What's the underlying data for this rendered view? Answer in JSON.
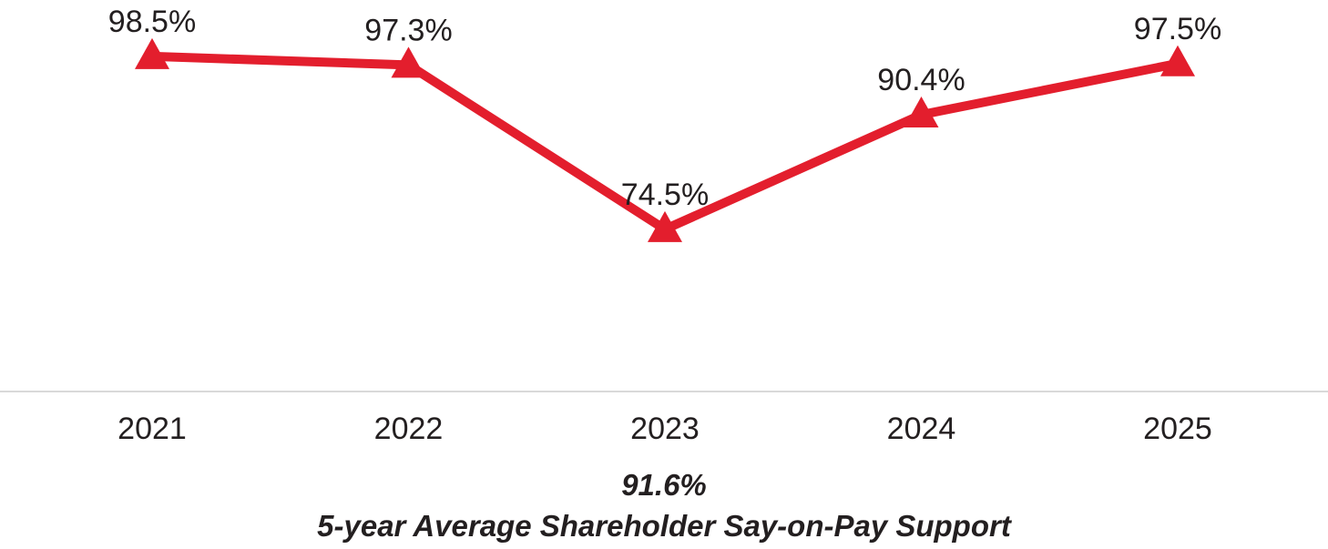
{
  "colors": {
    "line": "#e31e2d",
    "text": "#231f20",
    "axis": "#d9d9d9"
  },
  "chart_data": {
    "type": "line",
    "categories": [
      "2021",
      "2022",
      "2023",
      "2024",
      "2025"
    ],
    "series": [
      {
        "name": "Shareholder Say-on-Pay Support",
        "values": [
          98.5,
          97.3,
          74.5,
          90.4,
          97.5
        ],
        "labels": [
          "98.5%",
          "97.3%",
          "74.5%",
          "90.4%",
          "97.5%"
        ],
        "marker": "triangle"
      }
    ],
    "ylim": [
      52,
      100
    ],
    "xlabel": "",
    "ylabel": "",
    "grid": false,
    "legend": "none"
  },
  "summary": {
    "average_value": "91.6%",
    "average_label": "5-year Average Shareholder Say-on-Pay Support"
  }
}
